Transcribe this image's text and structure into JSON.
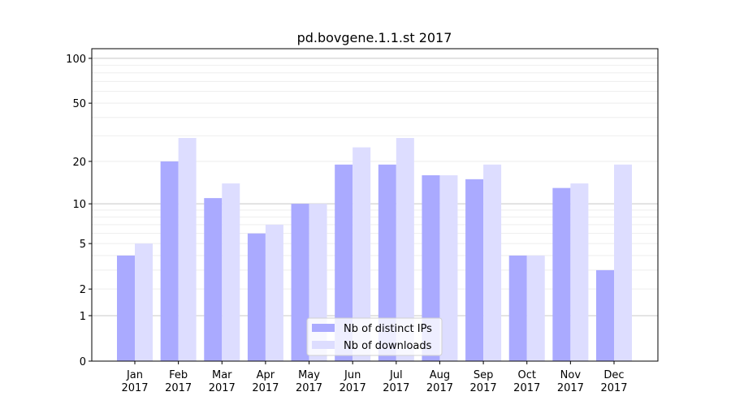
{
  "chart_data": {
    "type": "bar",
    "title": "pd.bovgene.1.1.st 2017",
    "categories": [
      "Jan\n2017",
      "Feb\n2017",
      "Mar\n2017",
      "Apr\n2017",
      "May\n2017",
      "Jun\n2017",
      "Jul\n2017",
      "Aug\n2017",
      "Sep\n2017",
      "Oct\n2017",
      "Nov\n2017",
      "Dec\n2017"
    ],
    "series": [
      {
        "name": "Nb of distinct IPs",
        "color": "#aaaaff",
        "values": [
          4,
          20,
          11,
          6,
          10,
          19,
          19,
          16,
          15,
          4,
          13,
          3
        ]
      },
      {
        "name": "Nb of downloads",
        "color": "#ddddff",
        "values": [
          5,
          29,
          14,
          7,
          10,
          25,
          29,
          16,
          19,
          4,
          14,
          19
        ]
      }
    ],
    "y_scale": "log(1+y)",
    "ylim": [
      0,
      116
    ],
    "yticks": [
      0,
      1,
      2,
      5,
      10,
      20,
      50,
      100
    ],
    "grid": true,
    "legend": "bottom-center",
    "xlabel": "",
    "ylabel": ""
  }
}
